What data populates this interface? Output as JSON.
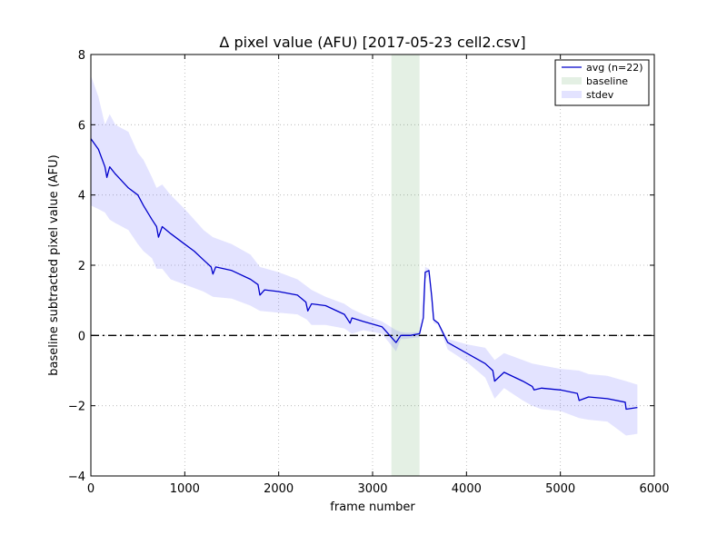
{
  "chart_data": {
    "type": "line",
    "title": "Δ pixel value (AFU) [2017-05-23 cell2.csv]",
    "xlabel": "frame number",
    "ylabel": "baseline subtracted pixel value (AFU)",
    "xlim": [
      0,
      6000
    ],
    "ylim": [
      -4,
      8
    ],
    "xticks": [
      0,
      1000,
      2000,
      3000,
      4000,
      5000,
      6000
    ],
    "yticks": [
      -4,
      -2,
      0,
      2,
      4,
      6,
      8
    ],
    "xtick_labels": [
      "0",
      "1000",
      "2000",
      "3000",
      "4000",
      "5000",
      "6000"
    ],
    "ytick_labels": [
      "−4",
      "−2",
      "0",
      "2",
      "4",
      "6",
      "8"
    ],
    "grid": true,
    "legend_position": "top-right",
    "colors": {
      "avg": "#0000cc",
      "baseline": "#2e8b2e",
      "stdev": "#6666ff",
      "zero": "#000000"
    },
    "baseline_region": {
      "name": "baseline",
      "x_start": 3200,
      "x_end": 3500
    },
    "zero_line": 0,
    "series": [
      {
        "name": "avg (n=22)",
        "x": [
          0,
          80,
          150,
          170,
          200,
          260,
          400,
          500,
          560,
          650,
          700,
          720,
          760,
          850,
          1000,
          1100,
          1200,
          1280,
          1300,
          1330,
          1500,
          1700,
          1780,
          1800,
          1850,
          2000,
          2200,
          2290,
          2310,
          2350,
          2500,
          2700,
          2760,
          2780,
          2900,
          3100,
          3250,
          3300,
          3350,
          3400,
          3500,
          3540,
          3560,
          3600,
          3630,
          3650,
          3700,
          3800,
          4000,
          4200,
          4280,
          4300,
          4400,
          4600,
          4700,
          4720,
          4800,
          5000,
          5180,
          5200,
          5300,
          5500,
          5690,
          5700,
          5820
        ],
        "y": [
          5.6,
          5.3,
          4.8,
          4.5,
          4.8,
          4.6,
          4.2,
          4.0,
          3.7,
          3.3,
          3.1,
          2.8,
          3.1,
          2.9,
          2.6,
          2.4,
          2.15,
          1.95,
          1.75,
          1.95,
          1.85,
          1.6,
          1.45,
          1.15,
          1.3,
          1.25,
          1.15,
          0.95,
          0.7,
          0.9,
          0.85,
          0.6,
          0.35,
          0.5,
          0.4,
          0.25,
          -0.2,
          0.0,
          0.0,
          0.0,
          0.05,
          0.5,
          1.8,
          1.85,
          1.1,
          0.45,
          0.35,
          -0.2,
          -0.5,
          -0.8,
          -1.0,
          -1.3,
          -1.05,
          -1.3,
          -1.45,
          -1.55,
          -1.5,
          -1.55,
          -1.65,
          -1.85,
          -1.75,
          -1.8,
          -1.9,
          -2.1,
          -2.05
        ]
      },
      {
        "name": "stdev",
        "x": [
          0,
          80,
          150,
          200,
          260,
          400,
          500,
          560,
          650,
          700,
          760,
          850,
          1000,
          1100,
          1200,
          1300,
          1500,
          1700,
          1800,
          2000,
          2200,
          2300,
          2350,
          2500,
          2700,
          2780,
          2900,
          3100,
          3250,
          3300,
          3350,
          3400,
          3500,
          3560,
          3600,
          3650,
          3700,
          3800,
          4000,
          4200,
          4300,
          4400,
          4600,
          4700,
          4800,
          5000,
          5200,
          5300,
          5500,
          5700,
          5820
        ],
        "upper": [
          7.4,
          6.8,
          6.0,
          6.3,
          6.0,
          5.8,
          5.2,
          5.0,
          4.5,
          4.2,
          4.3,
          4.0,
          3.6,
          3.3,
          3.0,
          2.8,
          2.6,
          2.3,
          1.95,
          1.8,
          1.6,
          1.4,
          1.3,
          1.1,
          0.9,
          0.75,
          0.6,
          0.4,
          0.15,
          0.1,
          0.08,
          0.08,
          0.1,
          1.95,
          1.9,
          0.5,
          0.35,
          -0.1,
          -0.25,
          -0.35,
          -0.7,
          -0.5,
          -0.7,
          -0.8,
          -0.85,
          -0.95,
          -1.0,
          -1.1,
          -1.15,
          -1.3,
          -1.4
        ],
        "lower": [
          3.7,
          3.6,
          3.5,
          3.3,
          3.2,
          3.0,
          2.6,
          2.4,
          2.2,
          1.9,
          1.9,
          1.6,
          1.45,
          1.35,
          1.25,
          1.1,
          1.05,
          0.85,
          0.7,
          0.65,
          0.6,
          0.45,
          0.3,
          0.3,
          0.2,
          0.05,
          0.15,
          0.05,
          -0.45,
          -0.1,
          -0.1,
          -0.08,
          -0.05,
          1.6,
          1.75,
          0.35,
          0.3,
          -0.4,
          -0.75,
          -1.2,
          -1.8,
          -1.5,
          -1.85,
          -2.0,
          -2.1,
          -2.15,
          -2.35,
          -2.4,
          -2.45,
          -2.85,
          -2.8
        ]
      }
    ]
  }
}
